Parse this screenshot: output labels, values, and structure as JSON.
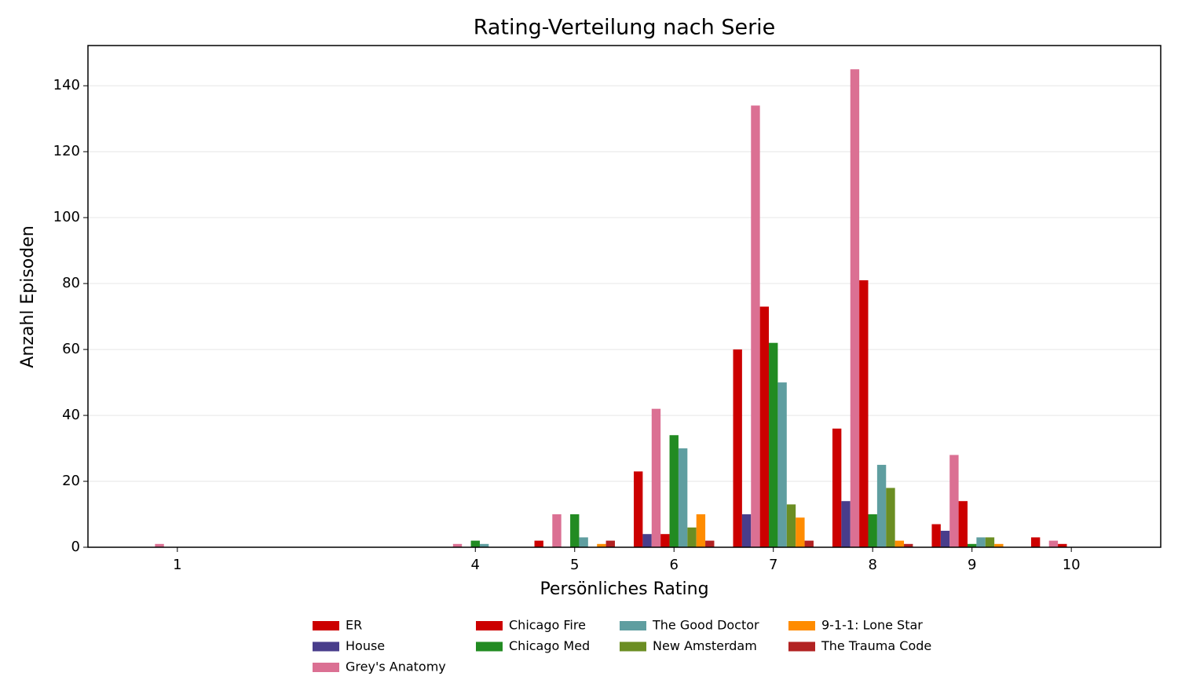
{
  "chart_data": {
    "type": "bar",
    "title": "Rating-Verteilung nach Serie",
    "x_label": "Persönliches Rating",
    "y_label": "Anzahl Episoden",
    "x": [
      1,
      4,
      5,
      6,
      7,
      8,
      9,
      10
    ],
    "xlim": [
      0.1,
      10.9
    ],
    "xticks": [
      1,
      4,
      5,
      6,
      7,
      8,
      9,
      10
    ],
    "ylim": [
      0,
      152.2
    ],
    "yticks": [
      0,
      20,
      40,
      60,
      80,
      100,
      120,
      140
    ],
    "grid": true,
    "legend": "lower center",
    "series": [
      {
        "name": "ER",
        "color": "#cc0000",
        "values": [
          0,
          0,
          2,
          23,
          60,
          36,
          7,
          3
        ]
      },
      {
        "name": "House",
        "color": "#483d8b",
        "values": [
          0,
          0,
          0,
          4,
          10,
          14,
          5,
          0
        ]
      },
      {
        "name": "Grey's Anatomy",
        "color": "#db7093",
        "values": [
          1,
          1,
          10,
          42,
          134,
          145,
          28,
          2
        ]
      },
      {
        "name": "Chicago Fire",
        "color": "#cc0000",
        "values": [
          0,
          0,
          0,
          4,
          73,
          81,
          14,
          1
        ]
      },
      {
        "name": "Chicago Med",
        "color": "#228b22",
        "values": [
          0,
          2,
          10,
          34,
          62,
          10,
          1,
          0
        ]
      },
      {
        "name": "The Good Doctor",
        "color": "#5f9ea0",
        "values": [
          0,
          1,
          3,
          30,
          50,
          25,
          3,
          0
        ]
      },
      {
        "name": "New Amsterdam",
        "color": "#6b8e23",
        "values": [
          0,
          0,
          0,
          6,
          13,
          18,
          3,
          0
        ]
      },
      {
        "name": "9-1-1: Lone Star",
        "color": "#ff8c00",
        "values": [
          0,
          0,
          1,
          10,
          9,
          2,
          1,
          0
        ]
      },
      {
        "name": "The Trauma Code",
        "color": "#b22222",
        "values": [
          0,
          0,
          2,
          2,
          2,
          1,
          0,
          0
        ]
      }
    ]
  }
}
